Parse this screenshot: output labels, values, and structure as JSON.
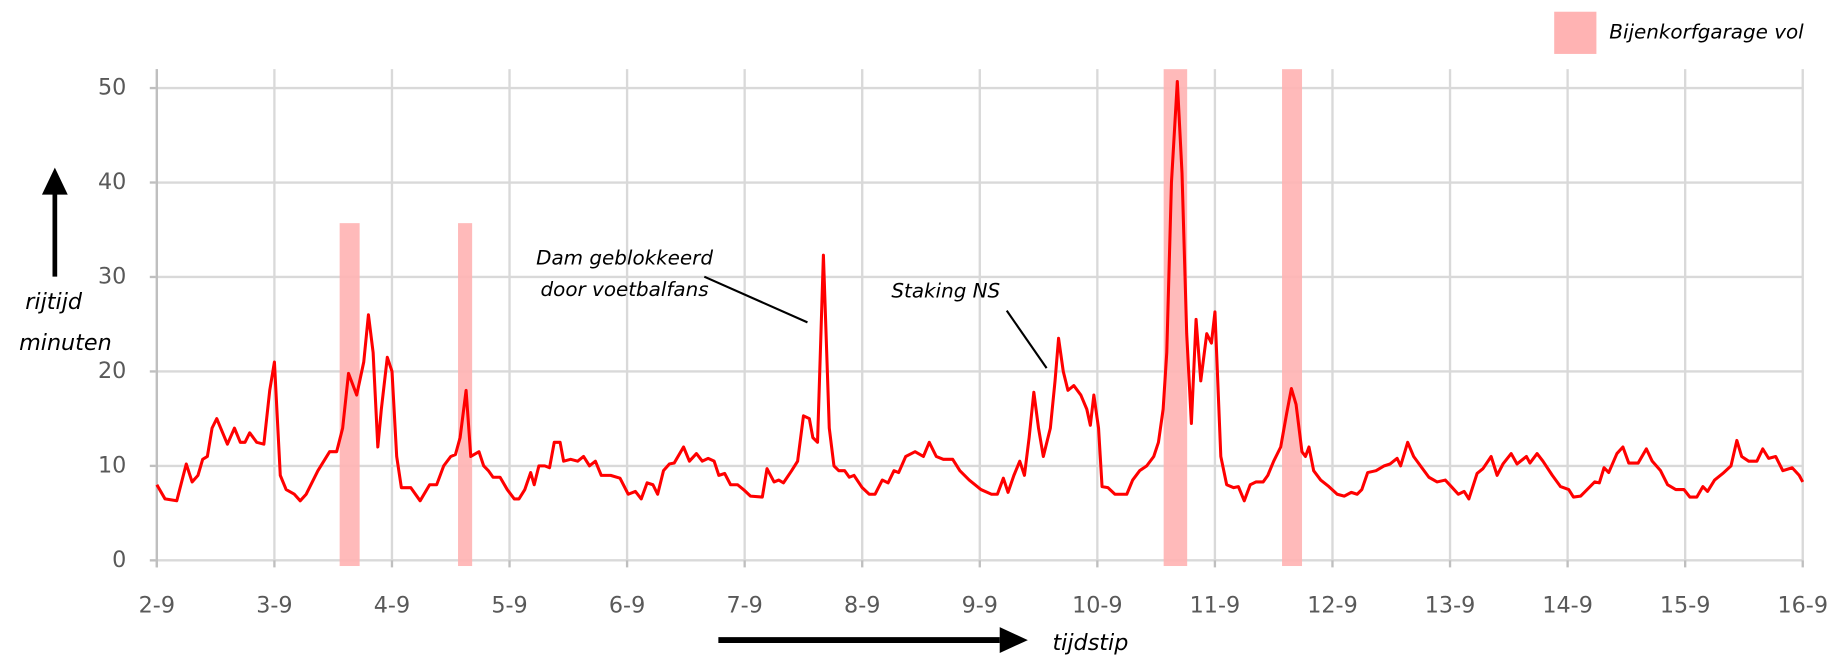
{
  "chart_data": {
    "type": "line",
    "x": [
      2.0,
      2.07,
      2.17,
      2.25,
      2.3,
      2.35,
      2.39,
      2.43,
      2.47,
      2.51,
      2.6,
      2.66,
      2.71,
      2.75,
      2.79,
      2.85,
      2.91,
      2.96,
      3.0,
      3.05,
      3.1,
      3.17,
      3.22,
      3.27,
      3.37,
      3.47,
      3.53,
      3.58,
      3.63,
      3.7,
      3.76,
      3.8,
      3.84,
      3.88,
      3.91,
      3.96,
      4.0,
      4.04,
      4.08,
      4.16,
      4.24,
      4.32,
      4.38,
      4.44,
      4.5,
      4.54,
      4.58,
      4.63,
      4.67,
      4.74,
      4.78,
      4.82,
      4.86,
      4.92,
      4.98,
      5.04,
      5.08,
      5.13,
      5.18,
      5.21,
      5.25,
      5.3,
      5.34,
      5.38,
      5.43,
      5.46,
      5.52,
      5.58,
      5.63,
      5.68,
      5.73,
      5.78,
      5.86,
      5.94,
      6.01,
      6.07,
      6.12,
      6.17,
      6.22,
      6.26,
      6.31,
      6.36,
      6.4,
      6.48,
      6.53,
      6.59,
      6.64,
      6.69,
      6.74,
      6.78,
      6.83,
      6.88,
      6.94,
      6.99,
      7.05,
      7.15,
      7.19,
      7.25,
      7.29,
      7.33,
      7.4,
      7.45,
      7.5,
      7.55,
      7.58,
      7.62,
      7.67,
      7.72,
      7.76,
      7.8,
      7.85,
      7.89,
      7.93,
      8.0,
      8.06,
      8.11,
      8.17,
      8.22,
      8.27,
      8.31,
      8.37,
      8.45,
      8.52,
      8.57,
      8.63,
      8.69,
      8.77,
      8.83,
      8.91,
      9.01,
      9.1,
      9.15,
      9.2,
      9.24,
      9.29,
      9.34,
      9.38,
      9.42,
      9.46,
      9.5,
      9.54,
      9.6,
      9.64,
      9.67,
      9.71,
      9.75,
      9.8,
      9.86,
      9.91,
      9.94,
      9.97,
      10.01,
      10.04,
      10.09,
      10.15,
      10.25,
      10.3,
      10.36,
      10.42,
      10.48,
      10.52,
      10.56,
      10.59,
      10.63,
      10.68,
      10.72,
      10.76,
      10.8,
      10.84,
      10.88,
      10.93,
      10.97,
      11.0,
      11.05,
      11.1,
      11.16,
      11.2,
      11.25,
      11.3,
      11.35,
      11.41,
      11.45,
      11.5,
      11.56,
      11.61,
      11.65,
      11.69,
      11.74,
      11.77,
      11.8,
      11.84,
      11.9,
      11.97,
      12.04,
      12.1,
      12.16,
      12.21,
      12.25,
      12.3,
      12.37,
      12.44,
      12.49,
      12.55,
      12.58,
      12.64,
      12.69,
      12.76,
      12.82,
      12.89,
      12.96,
      13.02,
      13.07,
      13.12,
      13.16,
      13.23,
      13.28,
      13.35,
      13.4,
      13.45,
      13.52,
      13.57,
      13.65,
      13.68,
      13.74,
      13.79,
      13.87,
      13.94,
      14.01,
      14.05,
      14.11,
      14.15,
      14.23,
      14.27,
      14.31,
      14.35,
      14.42,
      14.47,
      14.52,
      14.6,
      14.67,
      14.72,
      14.79,
      14.85,
      14.92,
      14.99,
      15.04,
      15.1,
      15.15,
      15.19,
      15.25,
      15.32,
      15.39,
      15.44,
      15.48,
      15.54,
      15.61,
      15.66,
      15.71,
      15.77,
      15.83,
      15.91,
      15.97,
      16.0
    ],
    "series": [
      {
        "color": "#ff0000",
        "values": [
          8,
          6.5,
          6.3,
          10.2,
          8.3,
          9,
          10.7,
          11,
          14,
          15,
          12.3,
          14,
          12.5,
          12.5,
          13.5,
          12.5,
          12.3,
          18,
          21,
          9,
          7.5,
          7,
          6.3,
          7,
          9.5,
          11.5,
          11.5,
          14,
          19.8,
          17.5,
          21,
          26,
          22,
          12,
          16,
          21.5,
          20,
          11,
          7.7,
          7.7,
          6.3,
          8,
          8,
          10,
          11,
          11.2,
          13,
          18,
          11,
          11.5,
          10,
          9.5,
          8.8,
          8.8,
          7.5,
          6.5,
          6.5,
          7.5,
          9.3,
          8,
          10,
          10,
          9.8,
          12.5,
          12.5,
          10.5,
          10.7,
          10.5,
          11,
          10,
          10.5,
          9,
          9,
          8.7,
          7,
          7.3,
          6.5,
          8.2,
          8,
          7,
          9.5,
          10.2,
          10.3,
          12,
          10.5,
          11.3,
          10.5,
          10.8,
          10.5,
          9,
          9.2,
          8,
          8,
          7.5,
          6.8,
          6.7,
          9.7,
          8.3,
          8.5,
          8.2,
          9.5,
          10.5,
          15.3,
          15,
          13,
          12.5,
          32.3,
          14,
          10,
          9.5,
          9.5,
          8.8,
          9,
          7.7,
          7,
          7,
          8.5,
          8.2,
          9.5,
          9.3,
          11,
          11.5,
          11,
          12.5,
          11,
          10.7,
          10.7,
          9.5,
          8.5,
          7.5,
          7,
          7,
          8.7,
          7.2,
          9,
          10.5,
          9,
          13,
          17.8,
          14,
          11,
          14,
          19,
          23.5,
          20,
          18,
          18.5,
          17.5,
          16,
          14.3,
          17.5,
          14,
          7.8,
          7.7,
          7,
          7,
          8.5,
          9.5,
          10,
          11,
          12.5,
          16,
          22,
          40,
          50.7,
          41,
          24,
          14.5,
          25.5,
          19,
          24,
          23,
          26.3,
          11,
          8,
          7.7,
          7.8,
          6.3,
          8,
          8.3,
          8.3,
          9,
          10.5,
          12,
          15.5,
          18.2,
          16.5,
          11.5,
          11,
          12,
          9.5,
          8.5,
          7.8,
          7,
          6.8,
          7.2,
          7,
          7.5,
          9.3,
          9.5,
          10,
          10.2,
          10.8,
          10,
          12.5,
          11,
          9.8,
          8.8,
          8.3,
          8.5,
          7.7,
          7,
          7.3,
          6.5,
          9.2,
          9.7,
          11,
          9,
          10.2,
          11.3,
          10.2,
          11,
          10.3,
          11.3,
          10.5,
          9,
          7.8,
          7.5,
          6.7,
          6.8,
          7.3,
          8.3,
          8.2,
          9.8,
          9.3,
          11.3,
          12,
          10.3,
          10.3,
          11.8,
          10.5,
          9.5,
          8,
          7.5,
          7.5,
          6.7,
          6.7,
          7.8,
          7.3,
          8.5,
          9.2,
          10,
          12.7,
          11,
          10.5,
          10.5,
          11.8,
          10.8,
          11,
          9.5,
          9.8,
          9,
          8.3
        ]
      }
    ],
    "highlights": {
      "name": "Bijenkorfgarage vol",
      "color": "#ffb3b3",
      "ranges": [
        {
          "x": [
            3.555,
            3.725
          ],
          "y": [
            -0.6,
            35.7
          ]
        },
        {
          "x": [
            4.562,
            4.682
          ],
          "y": [
            -0.6,
            35.7
          ]
        },
        {
          "x": [
            10.564,
            10.764
          ],
          "y": [
            -0.6,
            52
          ]
        },
        {
          "x": [
            11.571,
            11.741
          ],
          "y": [
            -0.6,
            52
          ]
        }
      ]
    },
    "xlim": [
      2,
      16
    ],
    "xticks": [
      {
        "value": 2,
        "label": "2-9"
      },
      {
        "value": 3,
        "label": "3-9"
      },
      {
        "value": 4,
        "label": "4-9"
      },
      {
        "value": 5,
        "label": "5-9"
      },
      {
        "value": 6,
        "label": "6-9"
      },
      {
        "value": 7,
        "label": "7-9"
      },
      {
        "value": 8,
        "label": "8-9"
      },
      {
        "value": 9,
        "label": "9-9"
      },
      {
        "value": 10,
        "label": "10-9"
      },
      {
        "value": 11,
        "label": "11-9"
      },
      {
        "value": 12,
        "label": "12-9"
      },
      {
        "value": 13,
        "label": "13-9"
      },
      {
        "value": 14,
        "label": "14-9"
      },
      {
        "value": 15,
        "label": "15-9"
      },
      {
        "value": 16,
        "label": "16-9"
      }
    ],
    "ylim": [
      0,
      52
    ],
    "yticks": [
      0,
      10,
      20,
      30,
      40,
      50
    ],
    "grid": true,
    "y_label": [
      "rijtijd",
      "minuten"
    ],
    "x_label": "tijdstip",
    "annotations": [
      {
        "lines": [
          "Dam geblokkeerd",
          "door voetbalfans"
        ]
      },
      {
        "lines": [
          "Staking NS"
        ]
      }
    ]
  }
}
